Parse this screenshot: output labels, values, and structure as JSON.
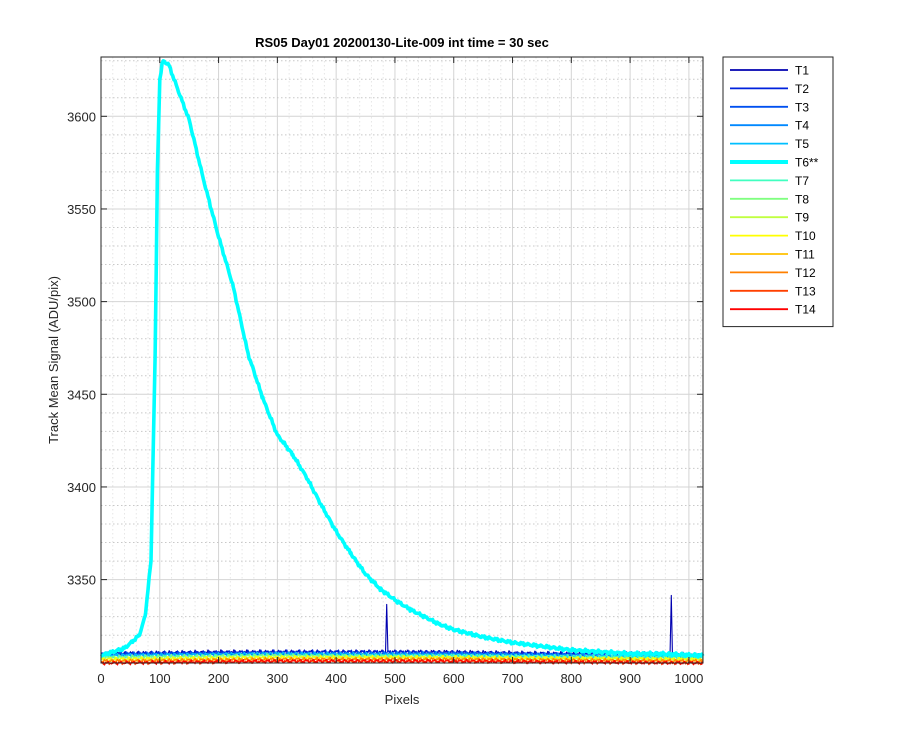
{
  "chart_data": {
    "type": "line",
    "title": "RS05 Day01 20200130-Lite-009 int time = 30 sec",
    "xlabel": "Pixels",
    "ylabel": "Track Mean Signal (ADU/pix)",
    "xlim": [
      0,
      1024
    ],
    "ylim": [
      3305,
      3632
    ],
    "xticks": [
      0,
      100,
      200,
      300,
      400,
      500,
      600,
      700,
      800,
      900,
      1000
    ],
    "yticks": [
      3350,
      3400,
      3450,
      3500,
      3550,
      3600
    ],
    "grid": "major and minor",
    "legend_position": "outside right, top",
    "series": [
      {
        "name": "T1",
        "color": "#0000b0",
        "points": [
          [
            0,
            3310
          ],
          [
            200,
            3311
          ],
          [
            400,
            3311
          ],
          [
            484,
            3311
          ],
          [
            486,
            3336
          ],
          [
            488,
            3311
          ],
          [
            600,
            3311
          ],
          [
            800,
            3310
          ],
          [
            968,
            3310
          ],
          [
            970,
            3342
          ],
          [
            972,
            3310
          ],
          [
            1024,
            3309
          ]
        ]
      },
      {
        "name": "T2",
        "color": "#0022dd",
        "points": [
          [
            0,
            3310
          ],
          [
            300,
            3311
          ],
          [
            500,
            3311
          ],
          [
            700,
            3310
          ],
          [
            900,
            3310
          ],
          [
            1024,
            3309
          ]
        ]
      },
      {
        "name": "T3",
        "color": "#0050f0",
        "points": [
          [
            0,
            3310
          ],
          [
            300,
            3310
          ],
          [
            600,
            3310
          ],
          [
            900,
            3309
          ],
          [
            1024,
            3309
          ]
        ]
      },
      {
        "name": "T4",
        "color": "#0088ff",
        "points": [
          [
            0,
            3309
          ],
          [
            300,
            3310
          ],
          [
            600,
            3310
          ],
          [
            900,
            3309
          ],
          [
            1024,
            3309
          ]
        ]
      },
      {
        "name": "T5",
        "color": "#00bfff",
        "points": [
          [
            0,
            3309
          ],
          [
            300,
            3310
          ],
          [
            600,
            3309
          ],
          [
            1024,
            3308
          ]
        ]
      },
      {
        "name": "T6**",
        "color": "#00ffff",
        "highlight": true,
        "points": [
          [
            0,
            3309
          ],
          [
            20,
            3311
          ],
          [
            40,
            3313
          ],
          [
            55,
            3317
          ],
          [
            65,
            3320
          ],
          [
            75,
            3330
          ],
          [
            85,
            3360
          ],
          [
            92,
            3470
          ],
          [
            96,
            3570
          ],
          [
            100,
            3620
          ],
          [
            105,
            3630
          ],
          [
            115,
            3628
          ],
          [
            130,
            3615
          ],
          [
            150,
            3598
          ],
          [
            175,
            3565
          ],
          [
            200,
            3535
          ],
          [
            225,
            3508
          ],
          [
            250,
            3472
          ],
          [
            275,
            3448
          ],
          [
            300,
            3428
          ],
          [
            325,
            3418
          ],
          [
            350,
            3405
          ],
          [
            375,
            3390
          ],
          [
            400,
            3376
          ],
          [
            425,
            3364
          ],
          [
            450,
            3353
          ],
          [
            475,
            3345
          ],
          [
            500,
            3339
          ],
          [
            525,
            3334
          ],
          [
            550,
            3330
          ],
          [
            575,
            3326
          ],
          [
            600,
            3323
          ],
          [
            650,
            3319
          ],
          [
            700,
            3316
          ],
          [
            750,
            3314
          ],
          [
            800,
            3312
          ],
          [
            850,
            3311
          ],
          [
            900,
            3310
          ],
          [
            950,
            3310
          ],
          [
            1024,
            3309
          ]
        ]
      },
      {
        "name": "T7",
        "color": "#40ffc0",
        "points": [
          [
            0,
            3308
          ],
          [
            300,
            3309
          ],
          [
            600,
            3309
          ],
          [
            1024,
            3308
          ]
        ]
      },
      {
        "name": "T8",
        "color": "#80ff80",
        "points": [
          [
            0,
            3308
          ],
          [
            300,
            3309
          ],
          [
            600,
            3308
          ],
          [
            1024,
            3307
          ]
        ]
      },
      {
        "name": "T9",
        "color": "#c0ff40",
        "points": [
          [
            0,
            3307
          ],
          [
            300,
            3308
          ],
          [
            600,
            3308
          ],
          [
            1024,
            3307
          ]
        ]
      },
      {
        "name": "T10",
        "color": "#ffff00",
        "points": [
          [
            0,
            3307
          ],
          [
            300,
            3308
          ],
          [
            600,
            3308
          ],
          [
            1024,
            3307
          ]
        ]
      },
      {
        "name": "T11",
        "color": "#ffc000",
        "points": [
          [
            0,
            3306
          ],
          [
            300,
            3307
          ],
          [
            600,
            3307
          ],
          [
            1024,
            3306
          ]
        ]
      },
      {
        "name": "T12",
        "color": "#ff8000",
        "points": [
          [
            0,
            3306
          ],
          [
            300,
            3307
          ],
          [
            600,
            3307
          ],
          [
            1024,
            3306
          ]
        ]
      },
      {
        "name": "T13",
        "color": "#ff4000",
        "points": [
          [
            0,
            3305
          ],
          [
            300,
            3306
          ],
          [
            600,
            3306
          ],
          [
            1024,
            3305
          ]
        ]
      },
      {
        "name": "T14",
        "color": "#ff0000",
        "points": [
          [
            0,
            3305
          ],
          [
            300,
            3306
          ],
          [
            600,
            3306
          ],
          [
            1024,
            3305
          ]
        ]
      }
    ]
  }
}
